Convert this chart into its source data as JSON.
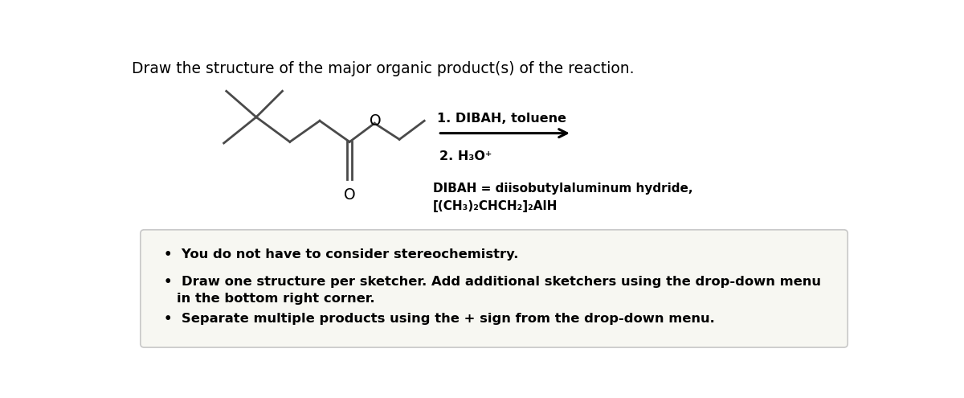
{
  "title": "Draw the structure of the major organic product(s) of the reaction.",
  "title_fontsize": 13.5,
  "bg_color": "#ffffff",
  "mol_color": "#4a4a4a",
  "text_color": "#000000",
  "reaction_label1": "1. DIBAH, toluene",
  "reaction_label2": "2. H₃O⁺",
  "dibah_line1": "DIBAH = diisobutylaluminum hydride,",
  "dibah_line2": "[(CH₃)₂CHCH₂]₂AlH",
  "bullet1": "You do not have to consider stereochemistry.",
  "bullet2a": "Draw one structure per sketcher. Add additional sketchers using the drop-down menu",
  "bullet2b": "in the bottom right corner.",
  "bullet3": "Separate multiple products using the + sign from the drop-down menu.",
  "box_color": "#f7f7f2",
  "box_border_color": "#c8c8c8"
}
